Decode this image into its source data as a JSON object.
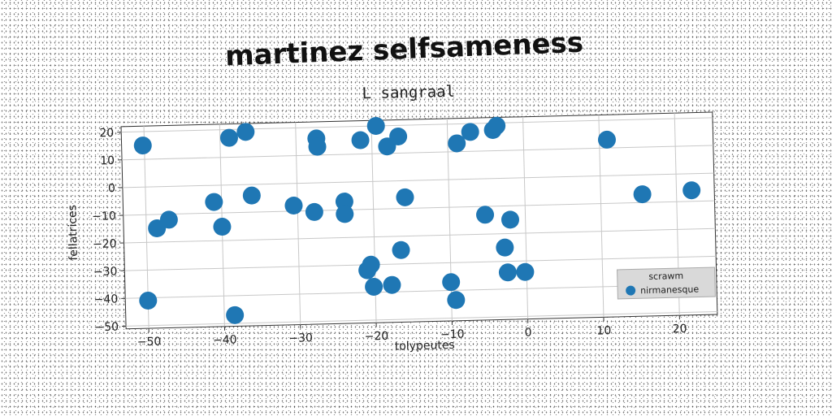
{
  "chart_data": {
    "type": "scatter",
    "title": "martinez selfsameness",
    "subtitle": "L sangraal",
    "xlabel": "tolypeutes",
    "ylabel": "fellatrices",
    "xlim": [
      -53,
      25
    ],
    "ylim": [
      -51,
      22
    ],
    "xticks": [
      -50,
      -40,
      -30,
      -20,
      -10,
      0,
      10,
      20
    ],
    "yticks": [
      -50,
      -40,
      -30,
      -20,
      -10,
      0,
      10,
      20
    ],
    "grid": true,
    "legend": {
      "title": "scrawm",
      "placement": "bottom-right"
    },
    "series": [
      {
        "name": "nirmanesque",
        "color": "#1f77b4",
        "points": [
          [
            -50.2,
            15
          ],
          [
            -48.6,
            -15
          ],
          [
            -47,
            -12
          ],
          [
            -41,
            -6
          ],
          [
            -40,
            -15
          ],
          [
            -50,
            -41
          ],
          [
            -38.6,
            -47
          ],
          [
            -38.8,
            17
          ],
          [
            -36.6,
            19
          ],
          [
            -36,
            -4
          ],
          [
            -30.5,
            -8
          ],
          [
            -27.8,
            -10.5
          ],
          [
            -27.3,
            16
          ],
          [
            -27.2,
            13
          ],
          [
            -23.8,
            -7
          ],
          [
            -23.8,
            -11.5
          ],
          [
            -21.5,
            15
          ],
          [
            -21,
            -32
          ],
          [
            -20.5,
            -30
          ],
          [
            -20.2,
            -38
          ],
          [
            -19.4,
            20
          ],
          [
            -18,
            12.5
          ],
          [
            -17.8,
            -37.5
          ],
          [
            -16.5,
            16
          ],
          [
            -16.5,
            -25
          ],
          [
            -15.8,
            -6
          ],
          [
            -10,
            -37
          ],
          [
            -9.4,
            -43.5
          ],
          [
            -8.8,
            13
          ],
          [
            -7,
            17
          ],
          [
            -5.3,
            -13
          ],
          [
            -4,
            17.5
          ],
          [
            -3.5,
            19
          ],
          [
            -2.8,
            -25
          ],
          [
            -2.5,
            -34
          ],
          [
            -2,
            -15
          ],
          [
            -0.2,
            -34
          ],
          [
            11,
            13
          ],
          [
            15.5,
            -7
          ],
          [
            22,
            -6
          ]
        ]
      }
    ]
  }
}
